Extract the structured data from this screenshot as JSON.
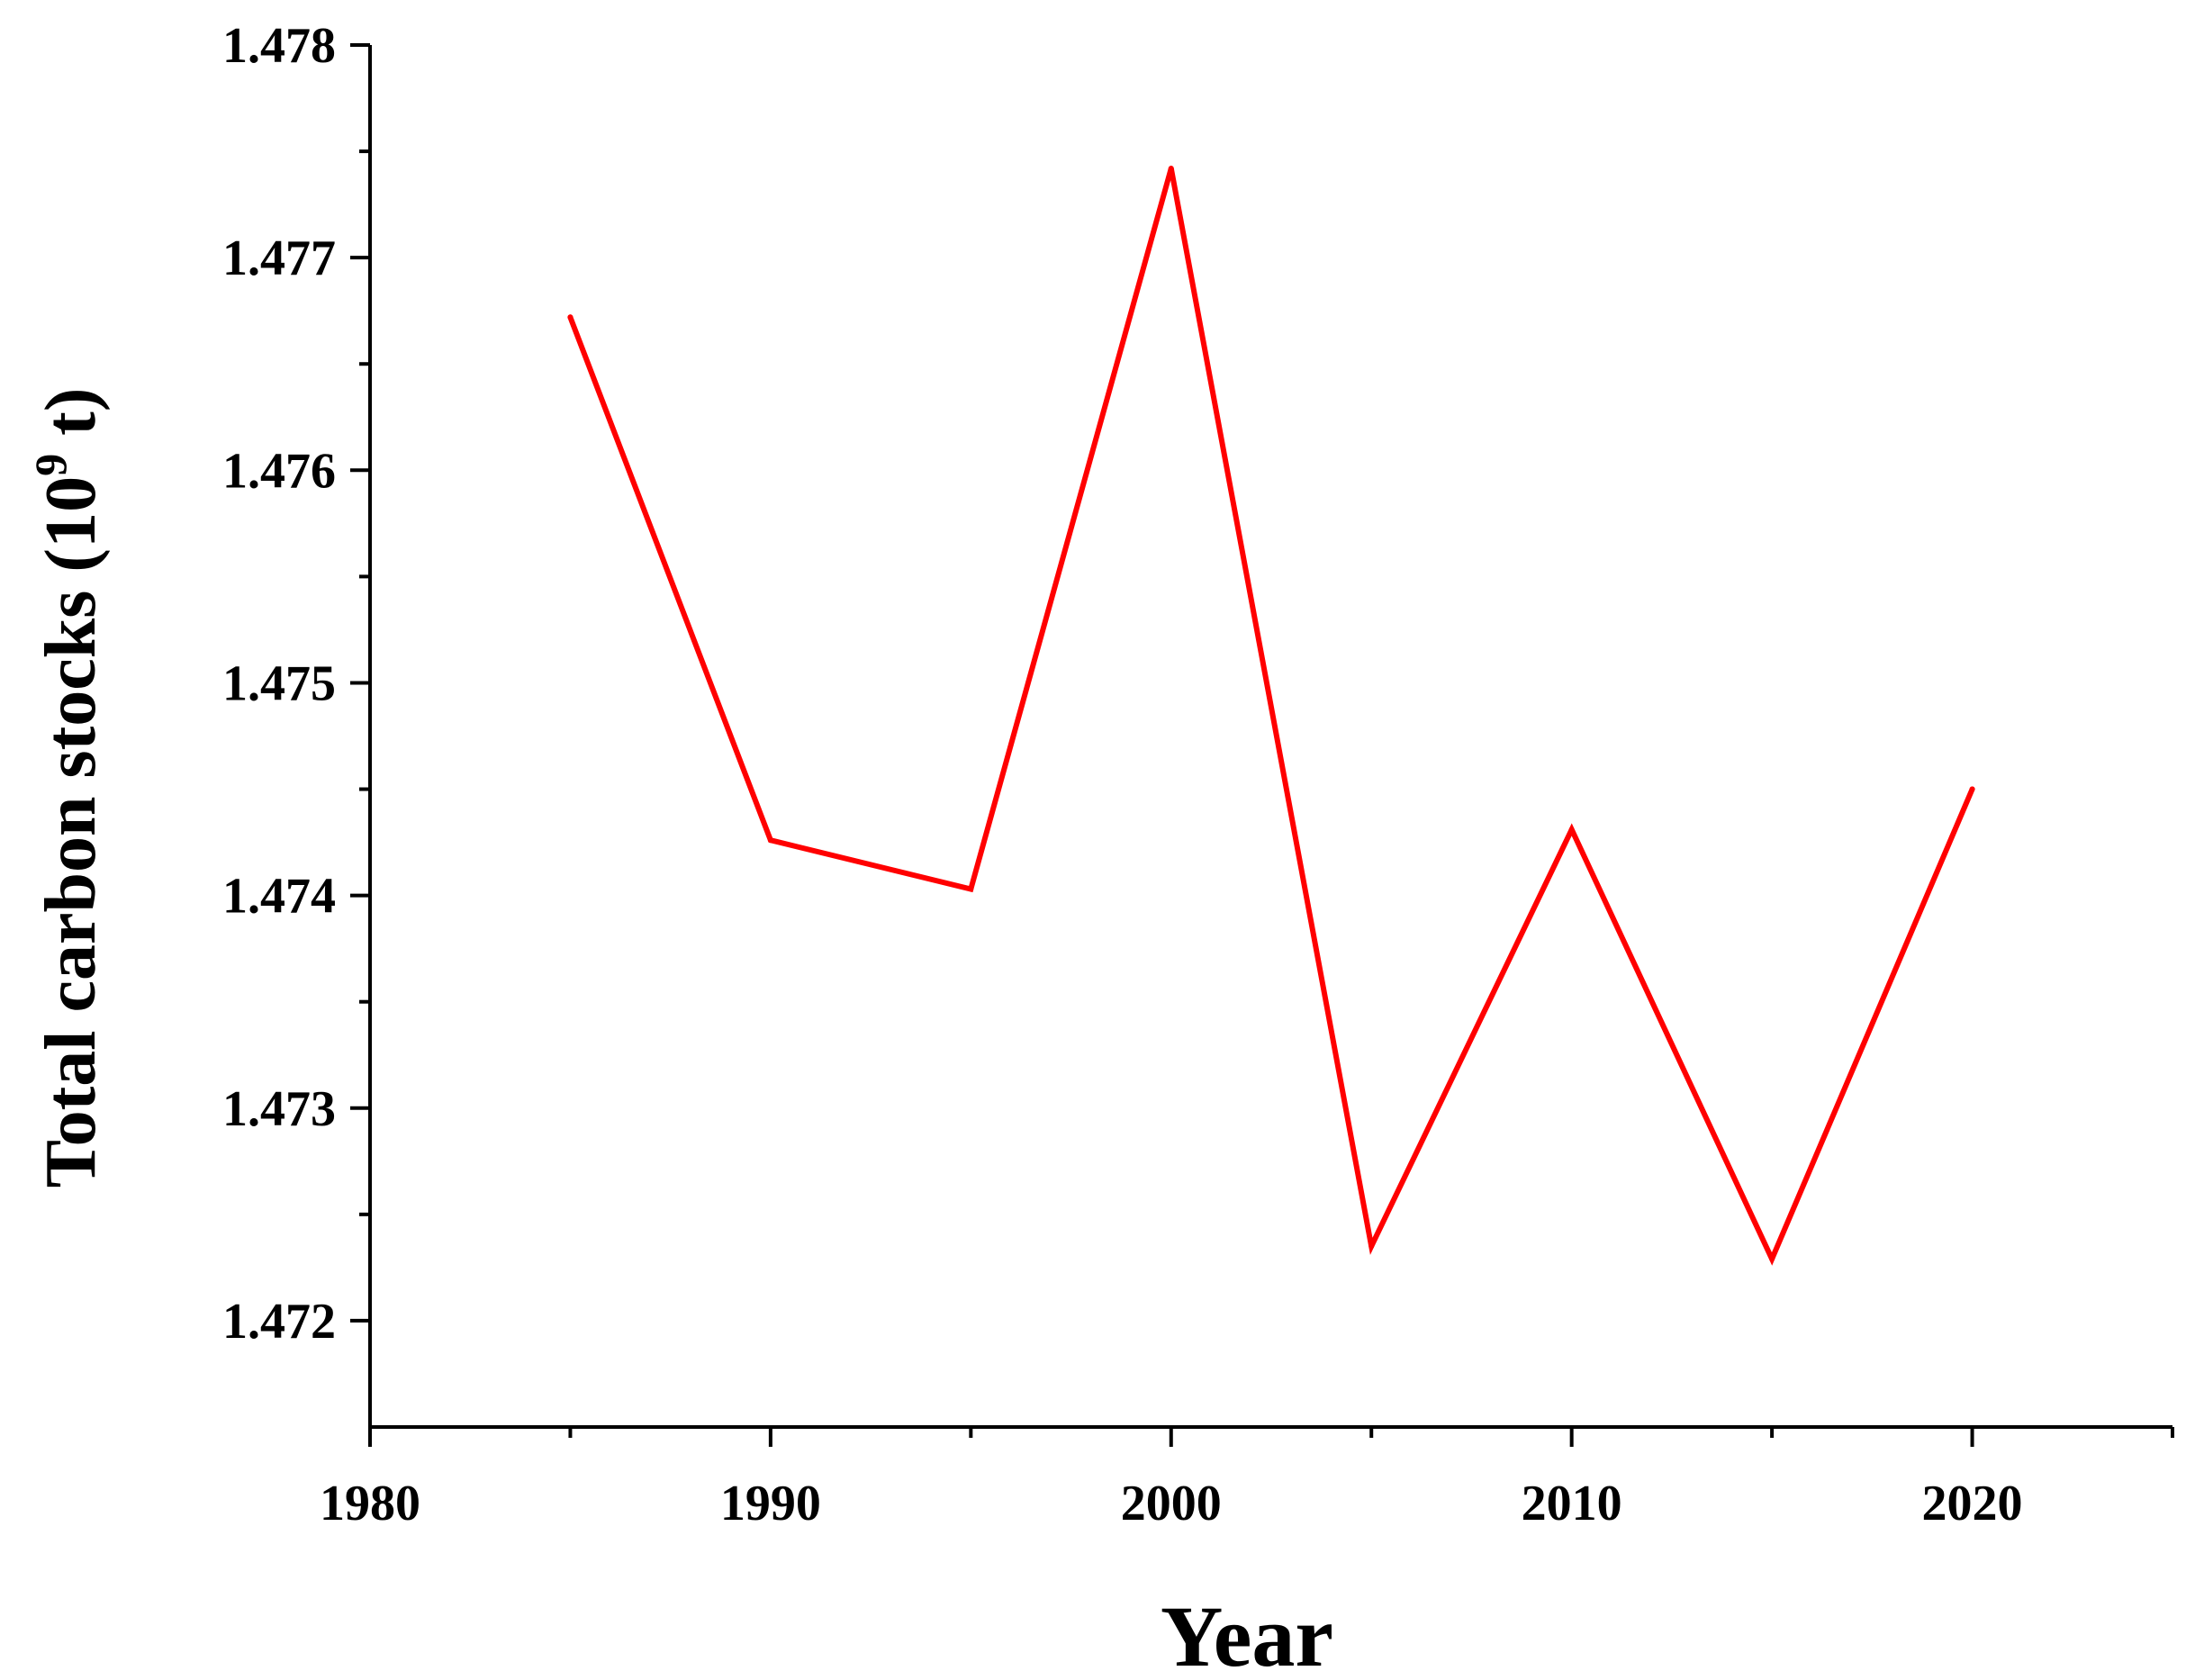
{
  "chart_data": {
    "type": "line",
    "title": "",
    "xlabel": "Year",
    "ylabel_main": "Total carbon stocks (10",
    "ylabel_sup": "9",
    "ylabel_end": " t)",
    "xlim": [
      1980,
      2025
    ],
    "ylim": [
      1.4715,
      1.478
    ],
    "x_ticks": [
      1980,
      1990,
      2000,
      2010,
      2020
    ],
    "x_tick_labels": [
      "1980",
      "1990",
      "2000",
      "2010",
      "2020"
    ],
    "y_ticks": [
      1.472,
      1.473,
      1.474,
      1.475,
      1.476,
      1.477,
      1.478
    ],
    "y_tick_labels": [
      "1.472",
      "1.473",
      "1.474",
      "1.475",
      "1.476",
      "1.477",
      "1.478"
    ],
    "grid": false,
    "series": [
      {
        "color": "#ff0000",
        "x": [
          1985,
          1990,
          1995,
          2000,
          2005,
          2010,
          2015,
          2020
        ],
        "y": [
          1.47672,
          1.47426,
          1.47403,
          1.47742,
          1.47235,
          1.47431,
          1.47229,
          1.4745
        ]
      }
    ]
  }
}
